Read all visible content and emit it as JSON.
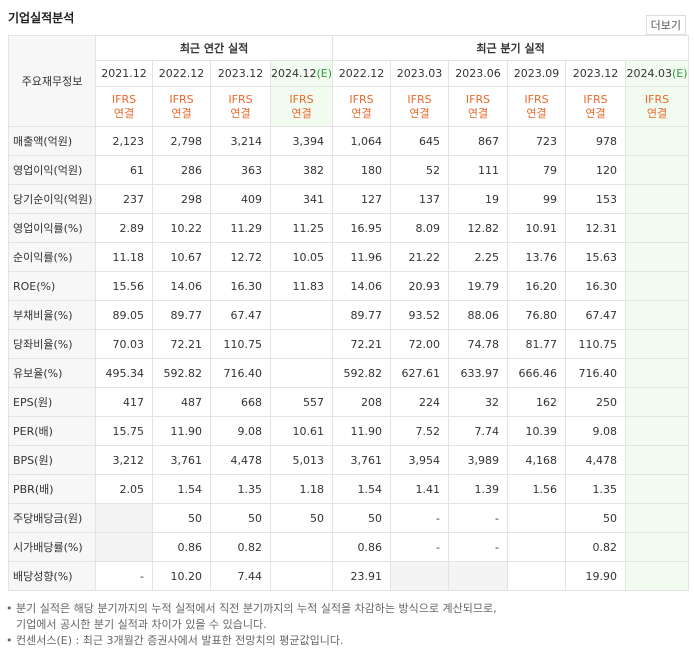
{
  "header": {
    "title": "기업실적분석",
    "more": "더보기"
  },
  "table": {
    "row_header": "주요재무정보",
    "groups": [
      "최근 연간 실적",
      "최근 분기 실적"
    ],
    "columns": [
      {
        "date": "2021.12",
        "standard": "IFRS",
        "consolidation": "연결"
      },
      {
        "date": "2022.12",
        "standard": "IFRS",
        "consolidation": "연결"
      },
      {
        "date": "2023.12",
        "standard": "IFRS",
        "consolidation": "연결"
      },
      {
        "date": "2024.12",
        "estimate": "(E)",
        "standard": "IFRS",
        "consolidation": "연결"
      },
      {
        "date": "2022.12",
        "standard": "IFRS",
        "consolidation": "연결"
      },
      {
        "date": "2023.03",
        "standard": "IFRS",
        "consolidation": "연결"
      },
      {
        "date": "2023.06",
        "standard": "IFRS",
        "consolidation": "연결"
      },
      {
        "date": "2023.09",
        "standard": "IFRS",
        "consolidation": "연결"
      },
      {
        "date": "2023.12",
        "standard": "IFRS",
        "consolidation": "연결"
      },
      {
        "date": "2024.03",
        "estimate": "(E)",
        "standard": "IFRS",
        "consolidation": "연결"
      }
    ],
    "rows": [
      {
        "label": "매출액(억원)",
        "cells": [
          "2,123",
          "2,798",
          "3,214",
          "3,394",
          "1,064",
          "645",
          "867",
          "723",
          "978",
          null
        ]
      },
      {
        "label": "영업이익(억원)",
        "cells": [
          "61",
          "286",
          "363",
          "382",
          "180",
          "52",
          "111",
          "79",
          "120",
          null
        ]
      },
      {
        "label": "당기순이익(억원)",
        "cells": [
          "237",
          "298",
          "409",
          "341",
          "127",
          "137",
          "19",
          "99",
          "153",
          null
        ]
      },
      {
        "label": "영업이익률(%)",
        "cells": [
          "2.89",
          "10.22",
          "11.29",
          "11.25",
          "16.95",
          "8.09",
          "12.82",
          "10.91",
          "12.31",
          null
        ]
      },
      {
        "label": "순이익률(%)",
        "cells": [
          "11.18",
          "10.67",
          "12.72",
          "10.05",
          "11.96",
          "21.22",
          "2.25",
          "13.76",
          "15.63",
          null
        ]
      },
      {
        "label": "ROE(%)",
        "cells": [
          "15.56",
          "14.06",
          "16.30",
          "11.83",
          "14.06",
          "20.93",
          "19.79",
          "16.20",
          "16.30",
          null
        ]
      },
      {
        "label": "부채비율(%)",
        "cells": [
          "89.05",
          "89.77",
          "67.47",
          null,
          "89.77",
          "93.52",
          "88.06",
          "76.80",
          "67.47",
          null
        ]
      },
      {
        "label": "당좌비율(%)",
        "cells": [
          "70.03",
          "72.21",
          "110.75",
          null,
          "72.21",
          "72.00",
          "74.78",
          "81.77",
          "110.75",
          null
        ]
      },
      {
        "label": "유보율(%)",
        "cells": [
          "495.34",
          "592.82",
          "716.40",
          null,
          "592.82",
          "627.61",
          "633.97",
          "666.46",
          "716.40",
          null
        ]
      },
      {
        "label": "EPS(원)",
        "cells": [
          "417",
          "487",
          "668",
          "557",
          "208",
          "224",
          "32",
          "162",
          "250",
          null
        ]
      },
      {
        "label": "PER(배)",
        "cells": [
          "15.75",
          "11.90",
          "9.08",
          "10.61",
          "11.90",
          "7.52",
          "7.74",
          "10.39",
          "9.08",
          null
        ]
      },
      {
        "label": "BPS(원)",
        "cells": [
          "3,212",
          "3,761",
          "4,478",
          "5,013",
          "3,761",
          "3,954",
          "3,989",
          "4,168",
          "4,478",
          null
        ]
      },
      {
        "label": "PBR(배)",
        "cells": [
          "2.05",
          "1.54",
          "1.35",
          "1.18",
          "1.54",
          "1.41",
          "1.39",
          "1.56",
          "1.35",
          null
        ]
      },
      {
        "label": "주당배당금(원)",
        "cells": [
          null,
          "50",
          "50",
          "50",
          "50",
          "-",
          "-",
          null,
          "50",
          null
        ]
      },
      {
        "label": "시가배당률(%)",
        "cells": [
          null,
          "0.86",
          "0.82",
          null,
          "0.86",
          "-",
          "-",
          null,
          "0.82",
          null
        ]
      },
      {
        "label": "배당성향(%)",
        "cells": [
          "-",
          "10.20",
          "7.44",
          null,
          "23.91",
          null,
          null,
          null,
          "19.90",
          null
        ]
      }
    ]
  },
  "notes": [
    "분기 실적은 해당 분기까지의 누적 실적에서 직전 분기까지의 누적 실적을 차감하는 방식으로 계산되므로,",
    "기업에서 공시한 분기 실적과 차이가 있을 수 있습니다.",
    "컨센서스(E) : 최근 3개월간 증권사에서 발표한 전망치의 평균값입니다."
  ]
}
